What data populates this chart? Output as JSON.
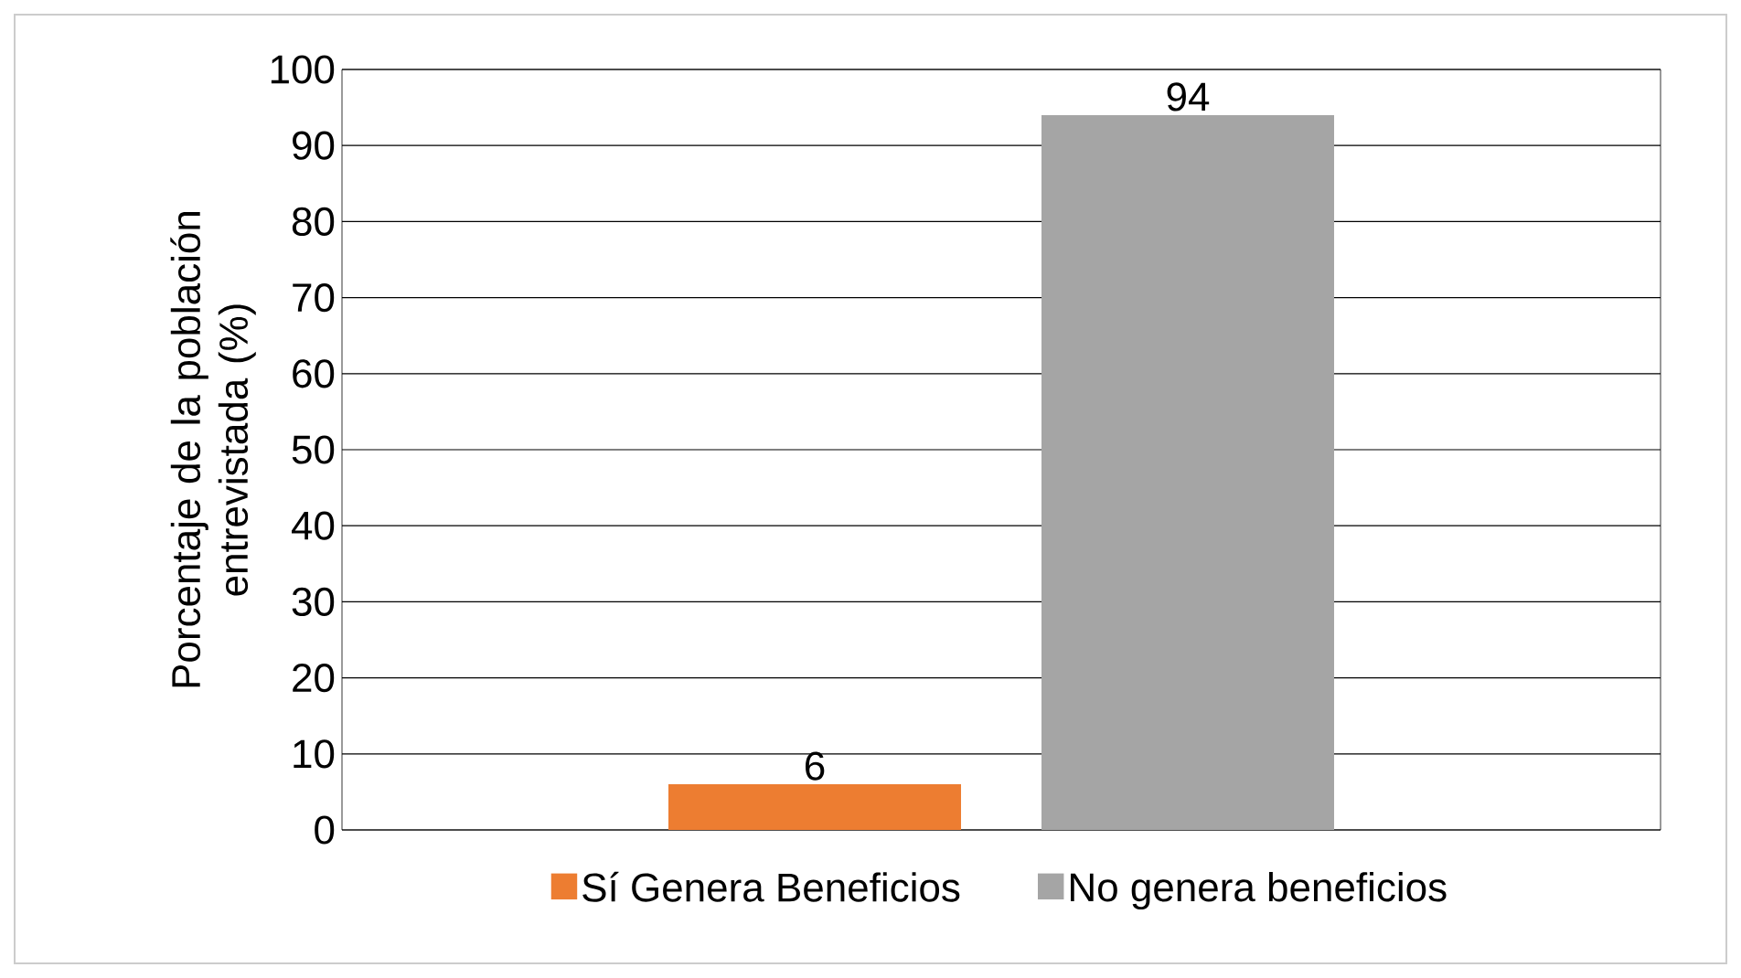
{
  "chart_data": {
    "type": "bar",
    "ylabel": "Porcentaje de la población entrevistada (%)",
    "categories": [
      null
    ],
    "series": [
      {
        "name": "Sí Genera Beneficios",
        "color": "#ed7d31",
        "values": [
          6
        ]
      },
      {
        "name": "No genera beneficios",
        "color": "#a5a5a5",
        "values": [
          94
        ]
      }
    ],
    "ylim": [
      0,
      100
    ],
    "yticks": [
      0,
      10,
      20,
      30,
      40,
      50,
      60,
      70,
      80,
      90,
      100
    ],
    "grid": "y",
    "legend": "bottom",
    "data_labels": true
  }
}
